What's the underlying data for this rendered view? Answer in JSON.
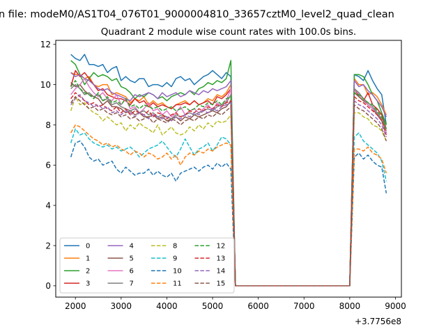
{
  "suptitle": "n file: modeM0/AS1T04_076T01_9000004810_33657cztM0_level2_quad_clean",
  "chart_data": {
    "type": "line",
    "title": "Quadrant 2 module wise count rates with 100.0s bins.",
    "xlabel": "",
    "ylabel": "",
    "x_offset_label": "+3.7756e8",
    "xlim": [
      1570,
      9130
    ],
    "ylim": [
      -0.56,
      12.2
    ],
    "xticks": [
      2000,
      3000,
      4000,
      5000,
      6000,
      7000,
      8000,
      9000
    ],
    "xtick_labels": [
      "2000",
      "3000",
      "4000",
      "5000",
      "6000",
      "7000",
      "8000",
      "9000"
    ],
    "yticks": [
      0,
      2,
      4,
      6,
      8,
      10,
      12
    ],
    "ytick_labels": [
      "0",
      "2",
      "4",
      "6",
      "8",
      "10",
      "12"
    ],
    "grid": false,
    "legend_position": "lower-left",
    "legend_columns": 4,
    "gap": {
      "start": 5500,
      "end": 8000
    },
    "segment1": {
      "x_start": 1900,
      "x_end": 5400,
      "step": 100
    },
    "segment2": {
      "x_start": 8100,
      "x_end": 8800,
      "step": 100
    },
    "series": [
      {
        "name": "0",
        "color": "#1f77b4",
        "dash": "solid",
        "seg1": [
          11.5,
          11.3,
          11.2,
          11.5,
          11.0,
          11.0,
          10.9,
          11.0,
          10.6,
          10.8,
          10.9,
          10.2,
          10.4,
          10.2,
          10.1,
          10.3,
          10.3,
          9.9,
          10.0,
          10.0,
          9.9,
          10.1,
          9.9,
          10.3,
          10.4,
          10.2,
          10.3,
          10.0,
          10.2,
          10.4,
          10.5,
          10.7,
          10.5,
          10.3,
          10.6,
          10.4
        ],
        "seg2": [
          10.5,
          10.4,
          10.2,
          10.7,
          10.2,
          9.8,
          9.5,
          8.0
        ]
      },
      {
        "name": "1",
        "color": "#ff7f0e",
        "dash": "solid",
        "seg1": [
          10.6,
          10.5,
          10.5,
          10.3,
          10.4,
          10.0,
          9.9,
          10.0,
          10.0,
          9.5,
          9.6,
          9.5,
          9.4,
          9.1,
          9.3,
          9.2,
          9.4,
          9.0,
          9.2,
          9.0,
          9.1,
          8.9,
          8.8,
          9.0,
          9.1,
          9.2,
          9.0,
          9.2,
          9.0,
          9.1,
          9.3,
          9.2,
          9.5,
          9.4,
          9.6,
          10.0
        ],
        "seg2": [
          10.3,
          10.0,
          10.0,
          9.5,
          9.6,
          9.4,
          9.0,
          8.5
        ]
      },
      {
        "name": "2",
        "color": "#2ca02c",
        "dash": "solid",
        "seg1": [
          11.2,
          11.0,
          10.5,
          10.0,
          10.3,
          10.6,
          10.4,
          10.5,
          10.4,
          10.2,
          10.3,
          9.9,
          9.8,
          9.6,
          9.3,
          9.5,
          9.4,
          9.6,
          9.5,
          9.3,
          9.4,
          9.2,
          9.4,
          9.5,
          9.6,
          9.5,
          9.7,
          9.5,
          9.8,
          9.9,
          10.1,
          10.0,
          10.2,
          10.1,
          10.3,
          11.2
        ],
        "seg2": [
          10.5,
          10.5,
          10.4,
          10.0,
          9.5,
          9.2,
          8.6,
          8.0
        ]
      },
      {
        "name": "3",
        "color": "#d62728",
        "dash": "solid",
        "seg1": [
          9.9,
          10.7,
          10.4,
          10.6,
          10.3,
          10.0,
          9.7,
          9.8,
          9.5,
          9.4,
          9.3,
          9.3,
          9.2,
          9.0,
          9.3,
          9.1,
          9.2,
          8.9,
          9.1,
          8.9,
          9.0,
          8.9,
          8.8,
          9.0,
          9.0,
          9.1,
          9.0,
          9.2,
          9.0,
          9.1,
          9.2,
          9.0,
          9.4,
          9.3,
          9.5,
          9.8
        ],
        "seg2": [
          9.8,
          9.4,
          9.2,
          9.6,
          9.0,
          8.8,
          8.5,
          7.8
        ]
      },
      {
        "name": "4",
        "color": "#9467bd",
        "dash": "solid",
        "seg1": [
          10.6,
          10.4,
          10.5,
          10.3,
          10.2,
          10.0,
          9.8,
          9.7,
          9.8,
          9.6,
          9.5,
          9.4,
          9.3,
          9.2,
          9.5,
          9.4,
          9.5,
          9.6,
          9.5,
          9.3,
          9.6,
          9.4,
          9.5,
          9.6,
          9.4,
          9.5,
          9.7,
          9.6,
          9.5,
          9.7,
          9.6,
          9.8,
          9.7,
          9.8,
          9.9,
          10.2
        ],
        "seg2": [
          10.2,
          9.9,
          10.0,
          9.7,
          9.5,
          9.2,
          8.9,
          8.4
        ]
      },
      {
        "name": "5",
        "color": "#8c564b",
        "dash": "solid",
        "seg1": [
          10.1,
          9.9,
          10.0,
          9.7,
          9.5,
          9.4,
          9.3,
          9.0,
          9.2,
          8.9,
          8.9,
          8.8,
          8.6,
          8.7,
          8.5,
          8.6,
          8.4,
          8.4,
          8.5,
          8.3,
          8.4,
          8.2,
          8.3,
          8.4,
          8.2,
          8.4,
          8.3,
          8.5,
          8.4,
          8.5,
          8.6,
          8.7,
          8.6,
          8.8,
          8.9,
          9.2
        ],
        "seg2": [
          9.6,
          9.4,
          9.2,
          9.0,
          8.8,
          8.5,
          8.2,
          7.6
        ]
      },
      {
        "name": "6",
        "color": "#e377c2",
        "dash": "solid",
        "seg1": [
          9.5,
          9.8,
          10.0,
          10.3,
          9.9,
          9.6,
          9.4,
          9.6,
          9.3,
          9.2,
          9.5,
          9.0,
          9.3,
          8.8,
          8.9,
          8.6,
          8.8,
          9.1,
          8.7,
          8.8,
          8.5,
          8.7,
          8.4,
          8.6,
          8.9,
          8.5,
          8.7,
          8.8,
          8.6,
          8.8,
          9.0,
          8.7,
          9.1,
          8.9,
          9.2,
          9.8
        ],
        "seg2": [
          9.8,
          9.5,
          9.3,
          9.0,
          8.8,
          8.6,
          8.3,
          7.6
        ]
      },
      {
        "name": "7",
        "color": "#7f7f7f",
        "dash": "solid",
        "seg1": [
          9.8,
          10.0,
          9.8,
          9.5,
          9.6,
          9.4,
          9.5,
          9.2,
          9.3,
          9.0,
          9.1,
          8.9,
          8.8,
          8.7,
          8.8,
          8.6,
          8.7,
          8.5,
          8.6,
          8.4,
          8.5,
          8.4,
          8.3,
          8.5,
          8.4,
          8.5,
          8.6,
          8.5,
          8.6,
          8.7,
          8.8,
          8.7,
          8.9,
          9.0,
          9.1,
          9.5
        ],
        "seg2": [
          9.8,
          9.6,
          9.3,
          9.1,
          8.9,
          8.6,
          8.3,
          7.7
        ]
      },
      {
        "name": "8",
        "color": "#bcbd22",
        "dash": "dashed",
        "seg1": [
          8.7,
          9.4,
          9.0,
          9.1,
          8.8,
          8.6,
          8.5,
          8.2,
          8.4,
          8.2,
          8.0,
          8.1,
          7.7,
          8.0,
          7.8,
          8.1,
          7.9,
          7.8,
          7.6,
          8.0,
          7.5,
          7.7,
          7.9,
          7.6,
          7.5,
          7.6,
          7.9,
          7.7,
          8.0,
          7.8,
          8.1,
          7.9,
          8.2,
          8.1,
          8.2,
          8.5
        ],
        "seg2": [
          8.6,
          8.6,
          8.4,
          8.3,
          8.0,
          7.9,
          7.7,
          7.2
        ]
      },
      {
        "name": "9",
        "color": "#17becf",
        "dash": "dashed",
        "seg1": [
          7.1,
          7.8,
          7.5,
          7.6,
          7.3,
          7.1,
          7.0,
          6.9,
          7.0,
          6.8,
          6.9,
          6.7,
          6.8,
          6.9,
          6.7,
          6.4,
          6.6,
          6.8,
          6.9,
          7.0,
          7.2,
          6.9,
          6.6,
          6.4,
          6.8,
          7.3,
          6.9,
          6.5,
          6.8,
          6.9,
          7.1,
          6.7,
          7.0,
          7.4,
          7.3,
          7.0
        ],
        "seg2": [
          7.4,
          7.6,
          7.2,
          7.0,
          6.8,
          6.6,
          6.2,
          5.2
        ]
      },
      {
        "name": "10",
        "color": "#1f77b4",
        "dash": "dashed",
        "seg1": [
          6.4,
          7.1,
          7.2,
          6.9,
          6.4,
          6.2,
          6.3,
          6.0,
          6.1,
          6.2,
          5.8,
          5.6,
          5.9,
          5.7,
          5.5,
          5.6,
          5.6,
          5.8,
          5.5,
          5.7,
          5.5,
          5.4,
          5.6,
          5.2,
          5.6,
          5.7,
          5.8,
          5.9,
          5.7,
          5.9,
          6.0,
          5.8,
          6.1,
          5.9,
          6.1,
          5.8
        ],
        "seg2": [
          6.4,
          6.6,
          6.3,
          6.5,
          6.2,
          6.0,
          5.9,
          4.6
        ]
      },
      {
        "name": "11",
        "color": "#ff7f0e",
        "dash": "dashed",
        "seg1": [
          7.6,
          8.0,
          7.9,
          7.7,
          7.5,
          7.3,
          7.2,
          7.0,
          7.1,
          6.9,
          7.0,
          6.8,
          6.7,
          6.5,
          6.7,
          6.6,
          6.4,
          6.6,
          6.5,
          6.3,
          6.4,
          6.6,
          6.3,
          6.5,
          6.0,
          6.4,
          6.6,
          6.5,
          6.7,
          6.6,
          6.8,
          6.7,
          6.9,
          7.0,
          7.1,
          7.0
        ],
        "seg2": [
          6.8,
          6.8,
          6.7,
          6.9,
          6.6,
          6.5,
          6.3,
          5.6
        ]
      },
      {
        "name": "12",
        "color": "#2ca02c",
        "dash": "dashed",
        "seg1": [
          9.9,
          10.2,
          9.8,
          9.6,
          9.5,
          9.3,
          9.6,
          9.2,
          9.4,
          9.1,
          9.2,
          9.0,
          9.3,
          8.9,
          9.0,
          8.8,
          9.0,
          8.9,
          8.8,
          8.9,
          8.7,
          8.8,
          8.9,
          8.7,
          8.8,
          8.9,
          8.7,
          8.8,
          9.0,
          8.9,
          9.1,
          9.0,
          9.2,
          9.0,
          9.3,
          9.4
        ],
        "seg2": [
          9.6,
          9.5,
          9.3,
          9.1,
          9.0,
          8.7,
          8.4,
          7.8
        ]
      },
      {
        "name": "13",
        "color": "#d62728",
        "dash": "dashed",
        "seg1": [
          9.3,
          9.6,
          9.4,
          9.2,
          9.0,
          9.1,
          8.9,
          9.0,
          8.8,
          8.7,
          8.9,
          8.6,
          8.8,
          8.5,
          8.7,
          8.6,
          8.5,
          8.7,
          8.4,
          8.6,
          8.5,
          8.3,
          8.5,
          8.6,
          8.4,
          8.5,
          8.7,
          8.6,
          8.8,
          8.7,
          8.9,
          8.8,
          9.0,
          8.9,
          9.1,
          9.2
        ],
        "seg2": [
          9.4,
          9.2,
          9.1,
          8.9,
          8.7,
          8.5,
          8.2,
          7.5
        ]
      },
      {
        "name": "14",
        "color": "#9467bd",
        "dash": "dashed",
        "seg1": [
          9.0,
          9.3,
          9.5,
          9.2,
          9.1,
          8.9,
          9.0,
          8.8,
          8.9,
          8.6,
          8.7,
          8.5,
          8.7,
          8.6,
          8.4,
          8.6,
          8.5,
          8.3,
          8.5,
          8.4,
          8.3,
          8.4,
          8.2,
          8.4,
          8.3,
          8.5,
          8.4,
          8.6,
          8.5,
          8.7,
          8.6,
          8.8,
          8.7,
          8.9,
          9.0,
          9.1
        ],
        "seg2": [
          9.2,
          9.0,
          8.9,
          8.7,
          8.5,
          8.3,
          8.0,
          7.4
        ]
      },
      {
        "name": "15",
        "color": "#8c564b",
        "dash": "dashed",
        "seg1": [
          9.1,
          9.4,
          9.2,
          9.0,
          8.8,
          8.9,
          8.7,
          8.8,
          8.6,
          8.5,
          8.6,
          8.4,
          8.5,
          8.3,
          8.4,
          8.2,
          8.3,
          8.4,
          8.1,
          8.3,
          8.2,
          8.1,
          8.3,
          8.2,
          8.0,
          8.2,
          8.3,
          8.2,
          8.4,
          8.3,
          8.5,
          8.4,
          8.6,
          8.5,
          8.7,
          8.9
        ],
        "seg2": [
          9.0,
          8.8,
          8.7,
          8.5,
          8.3,
          8.1,
          7.8,
          7.2
        ]
      }
    ]
  }
}
